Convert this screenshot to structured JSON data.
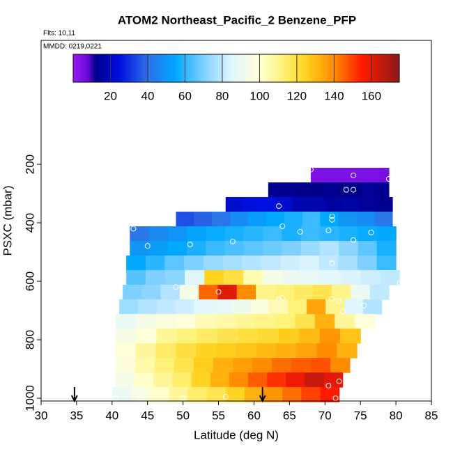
{
  "chart_data": {
    "type": "curtain",
    "title": "ATOM2 Northeast_Pacific_2 Benzene_PFP",
    "flights_label": "Flts: 10,11",
    "dates_label": "MMDD: 0219,0221",
    "x_label": "Latitude (deg N)",
    "y_label": "PSXC (mbar)",
    "xlim": [
      30,
      85
    ],
    "xticks": [
      30,
      35,
      40,
      45,
      50,
      55,
      60,
      65,
      70,
      75,
      80,
      85
    ],
    "ylim": [
      1009.5,
      -223.8
    ],
    "yticks": [
      200,
      400,
      600,
      800,
      1000
    ],
    "colorbar": {
      "range": [
        0,
        175
      ],
      "ticks": [
        20,
        40,
        60,
        80,
        100,
        120,
        140,
        160
      ],
      "stops": [
        {
          "value": 0,
          "color": "#9a1ef5"
        },
        {
          "value": 8,
          "color": "#6a0ad8"
        },
        {
          "value": 12,
          "color": "#00008b"
        },
        {
          "value": 25,
          "color": "#0010e0"
        },
        {
          "value": 40,
          "color": "#2f6fe8"
        },
        {
          "value": 55,
          "color": "#00a8ff"
        },
        {
          "value": 70,
          "color": "#7fd0ff"
        },
        {
          "value": 85,
          "color": "#e0f6ff"
        },
        {
          "value": 100,
          "color": "#ffffd8"
        },
        {
          "value": 112,
          "color": "#fff27a"
        },
        {
          "value": 125,
          "color": "#ffd21e"
        },
        {
          "value": 140,
          "color": "#ff8c00"
        },
        {
          "value": 155,
          "color": "#ff1a00"
        },
        {
          "value": 175,
          "color": "#8b1a1a"
        }
      ]
    },
    "bands": [
      {
        "p": [
          212,
          267
        ],
        "lat": [
          68,
          79
        ],
        "values": [
          5,
          5,
          5,
          5,
          5,
          5,
          5,
          6
        ]
      },
      {
        "p": [
          262,
          312
        ],
        "lat": [
          62,
          79
        ],
        "values": [
          13,
          13,
          12,
          12,
          13,
          12,
          12,
          14,
          13
        ]
      },
      {
        "p": [
          312,
          362
        ],
        "lat": [
          56,
          79.5
        ],
        "values": [
          22,
          24,
          25,
          22,
          18,
          17,
          15,
          16,
          14,
          13
        ]
      },
      {
        "p": [
          362,
          412
        ],
        "lat": [
          49,
          79.5
        ],
        "values": [
          35,
          38,
          42,
          48,
          52,
          55,
          58,
          62,
          55,
          50,
          48,
          42
        ]
      },
      {
        "p": [
          412,
          462
        ],
        "lat": [
          42.5,
          80
        ],
        "values": [
          42,
          46,
          50,
          54,
          56,
          58,
          60,
          62,
          58,
          62,
          60,
          58,
          56,
          55
        ]
      },
      {
        "p": [
          462,
          512
        ],
        "lat": [
          42.5,
          80
        ],
        "values": [
          50,
          52,
          55,
          58,
          62,
          64,
          66,
          68,
          70,
          74,
          78,
          72,
          66,
          58
        ]
      },
      {
        "p": [
          512,
          562
        ],
        "lat": [
          42,
          80
        ],
        "values": [
          55,
          60,
          66,
          70,
          74,
          76,
          78,
          80,
          82,
          84,
          80,
          76,
          70,
          62
        ]
      },
      {
        "p": [
          562,
          612
        ],
        "lat": [
          42,
          80.5
        ],
        "values": [
          65,
          70,
          72,
          85,
          125,
          120,
          105,
          95,
          90,
          88,
          86,
          84,
          82,
          80
        ]
      },
      {
        "p": [
          612,
          662
        ],
        "lat": [
          41.5,
          79
        ],
        "values": [
          70,
          72,
          78,
          95,
          145,
          160,
          140,
          110,
          112,
          115,
          118,
          110,
          90,
          80
        ]
      },
      {
        "p": [
          662,
          712
        ],
        "lat": [
          41,
          78
        ],
        "values": [
          75,
          78,
          80,
          82,
          86,
          88,
          92,
          98,
          105,
          112,
          135,
          110,
          85,
          78
        ]
      },
      {
        "p": [
          712,
          762
        ],
        "lat": [
          40.5,
          77
        ],
        "values": [
          90,
          95,
          98,
          100,
          104,
          106,
          108,
          110,
          112,
          118,
          132,
          108,
          100
        ]
      },
      {
        "p": [
          762,
          812
        ],
        "lat": [
          40.5,
          75
        ],
        "values": [
          95,
          100,
          108,
          112,
          115,
          118,
          120,
          122,
          126,
          130,
          138,
          128
        ]
      },
      {
        "p": [
          812,
          862
        ],
        "lat": [
          40.5,
          74.5
        ],
        "values": [
          100,
          108,
          115,
          120,
          124,
          126,
          128,
          130,
          132,
          135,
          140,
          132
        ]
      },
      {
        "p": [
          862,
          912
        ],
        "lat": [
          40.5,
          73.5
        ],
        "values": [
          98,
          106,
          112,
          118,
          126,
          132,
          136,
          140,
          144,
          146,
          148,
          140
        ]
      },
      {
        "p": [
          912,
          962
        ],
        "lat": [
          40.5,
          72.5
        ],
        "values": [
          95,
          102,
          108,
          114,
          124,
          132,
          140,
          146,
          152,
          158,
          165,
          160
        ]
      },
      {
        "p": [
          962,
          1012
        ],
        "lat": [
          40,
          72
        ],
        "values": [
          90,
          96,
          102,
          108,
          114,
          118,
          124,
          132,
          138,
          144,
          150,
          155
        ]
      }
    ],
    "samples": {
      "lat": [
        68,
        74,
        79,
        73,
        74,
        63.5,
        71,
        71,
        80,
        43,
        64,
        66.5,
        70.5,
        76.5,
        74,
        45,
        51,
        57,
        71,
        49,
        55,
        64,
        80.5,
        71,
        72,
        75.5,
        72.5,
        63.5,
        70.5,
        72,
        71.5,
        40.5,
        44,
        50,
        56
      ],
      "pressure": [
        218,
        238,
        250,
        287,
        287,
        343,
        378,
        390,
        375,
        420,
        412,
        431,
        426,
        433,
        459,
        479,
        474,
        464,
        538,
        620,
        636,
        657,
        606,
        660,
        668,
        683,
        703,
        663,
        957,
        942,
        1000,
        1000,
        1000,
        1000,
        995
      ]
    },
    "arrows": [
      34.7,
      61.2
    ]
  }
}
